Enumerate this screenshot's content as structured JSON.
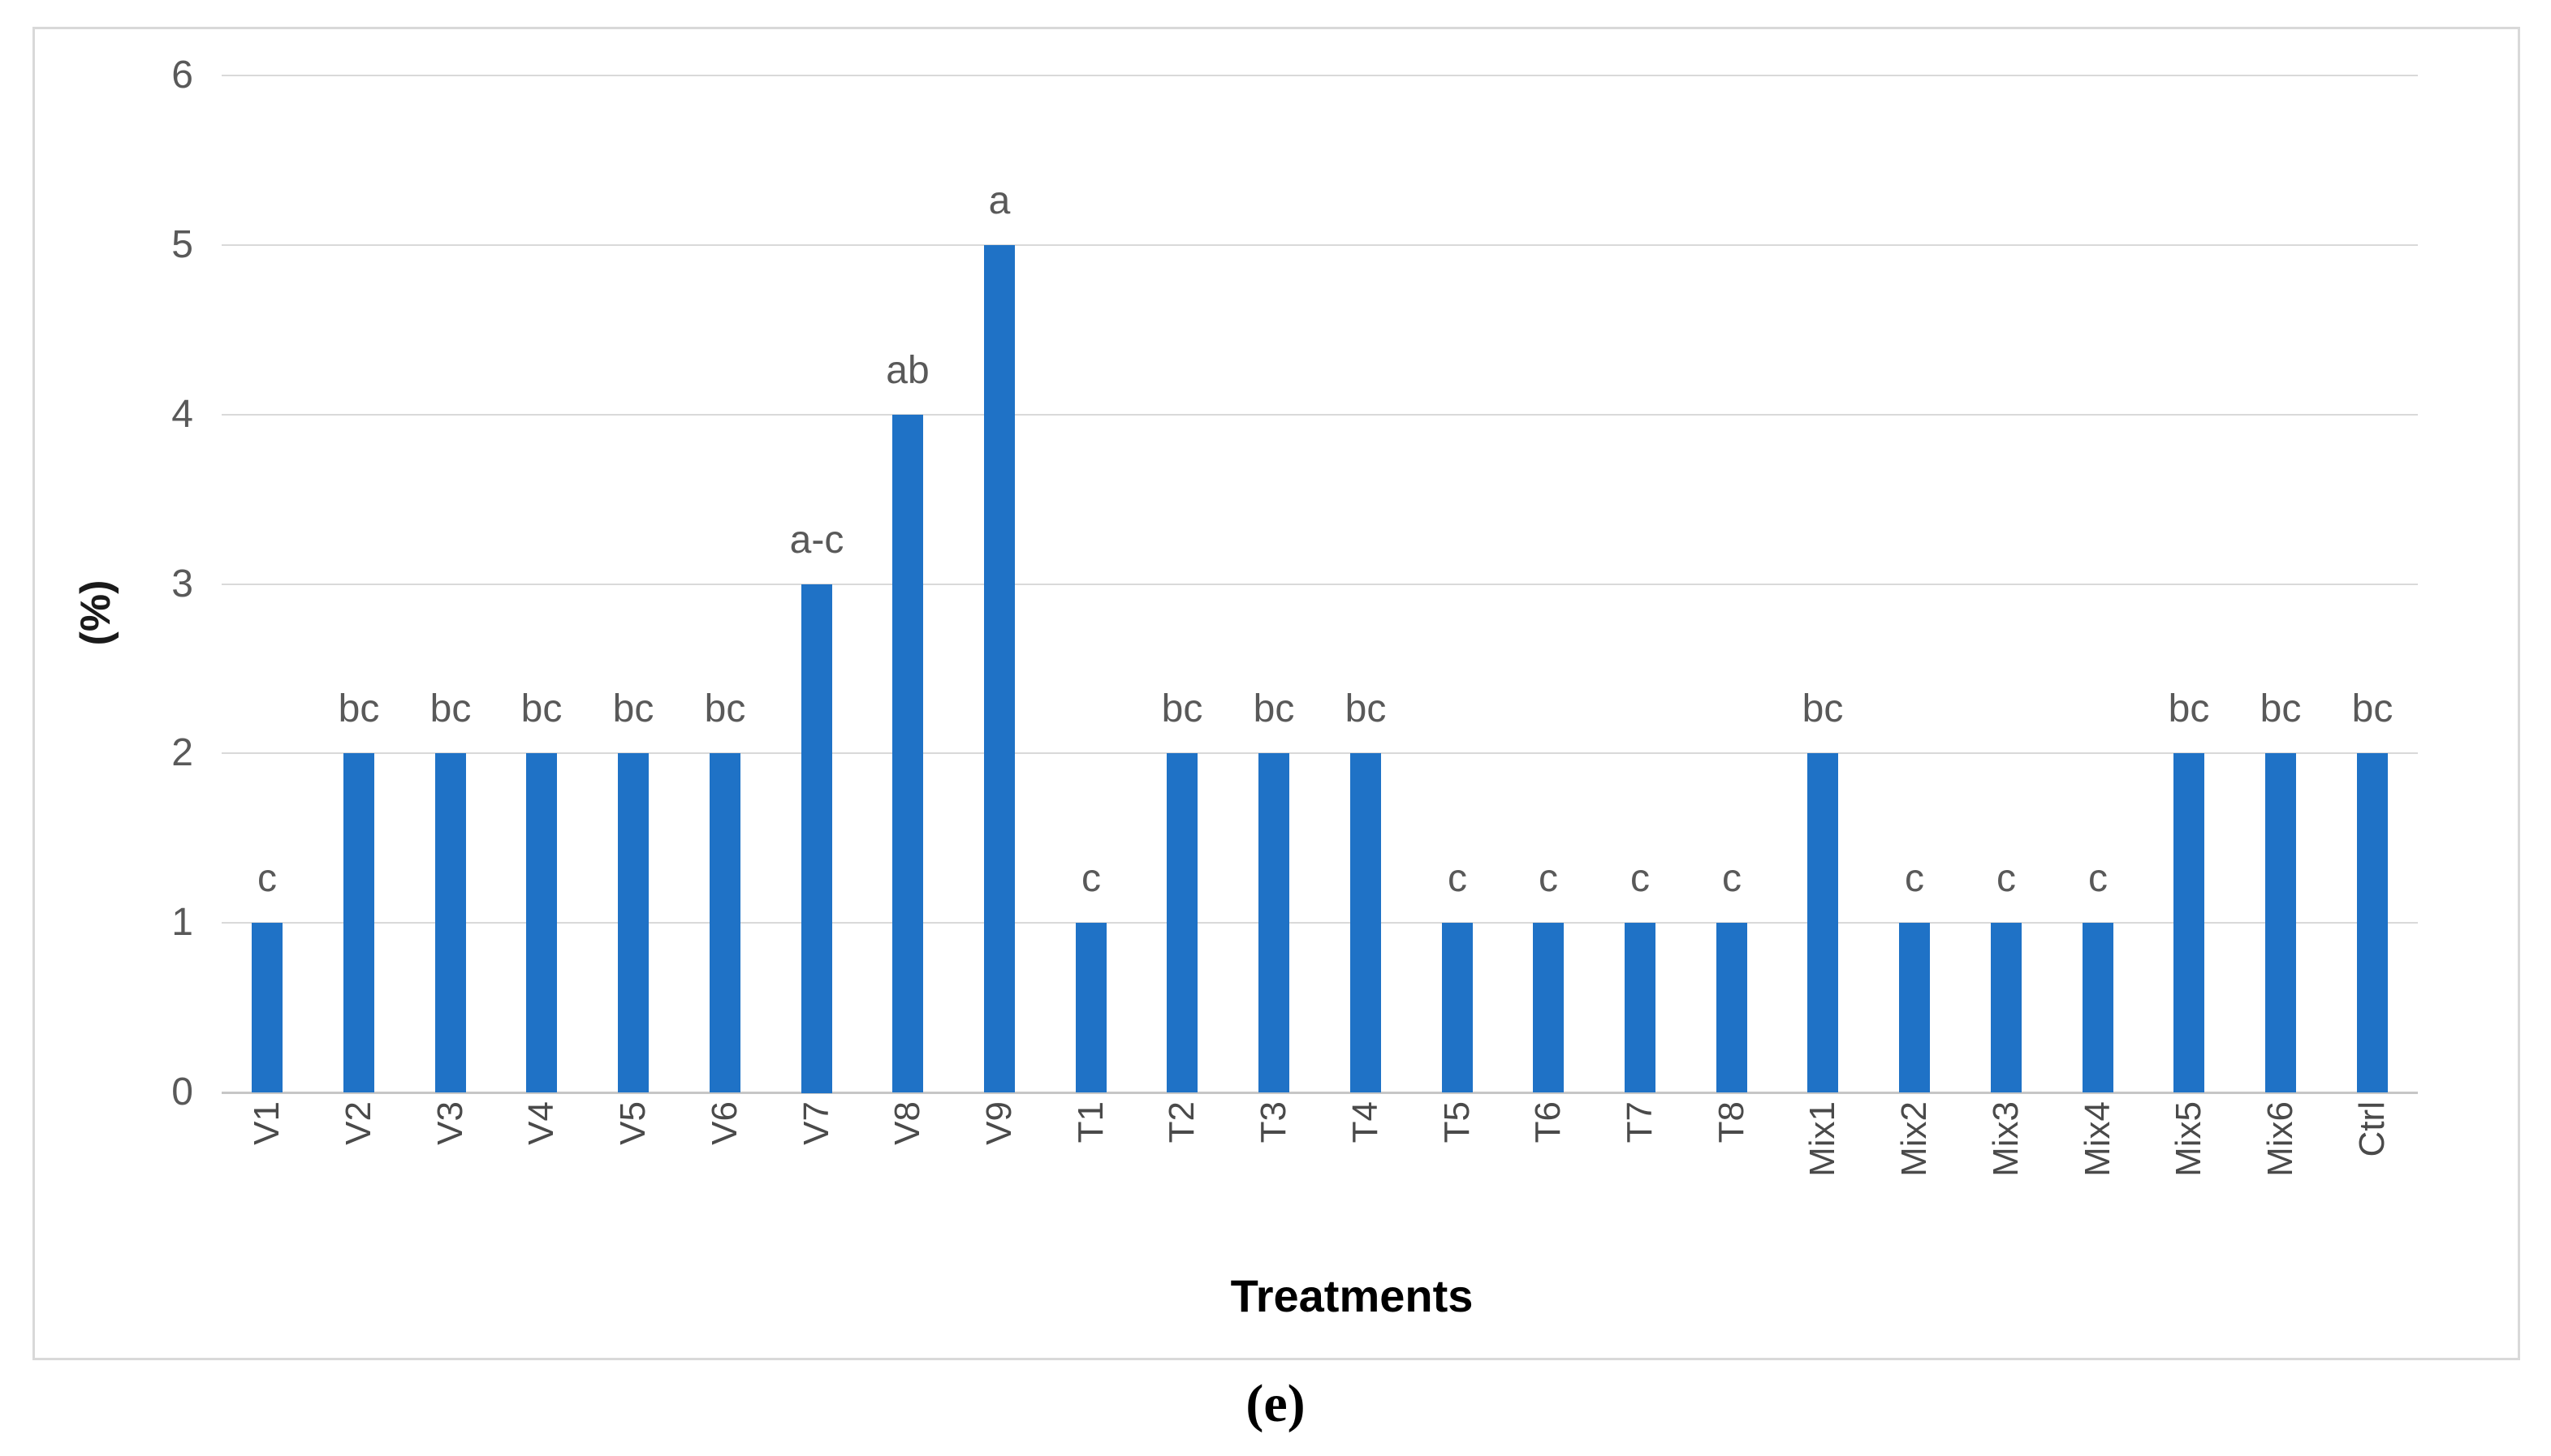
{
  "figure": {
    "caption": "(e)"
  },
  "chart_data": {
    "type": "bar",
    "title": "",
    "categories": [
      "V1",
      "V2",
      "V3",
      "V4",
      "V5",
      "V6",
      "V7",
      "V8",
      "V9",
      "T1",
      "T2",
      "T3",
      "T4",
      "T5",
      "T6",
      "T7",
      "T8",
      "Mix1",
      "Mix2",
      "Mix3",
      "Mix4",
      "Mix5",
      "Mix6",
      "Ctrl"
    ],
    "values": [
      1,
      2,
      2,
      2,
      2,
      2,
      3,
      4,
      5,
      1,
      2,
      2,
      2,
      1,
      1,
      1,
      1,
      2,
      1,
      1,
      1,
      2,
      2,
      2
    ],
    "bar_labels": [
      "c",
      "bc",
      "bc",
      "bc",
      "bc",
      "bc",
      "a-c",
      "ab",
      "a",
      "c",
      "bc",
      "bc",
      "bc",
      "c",
      "c",
      "c",
      "c",
      "bc",
      "c",
      "c",
      "c",
      "bc",
      "bc",
      "bc"
    ],
    "xlabel": "Treatments",
    "ylabel": "(%)",
    "ylim": [
      0,
      6
    ],
    "yticks": [
      0,
      1,
      2,
      3,
      4,
      5,
      6
    ],
    "grid": true,
    "legend": "none",
    "bar_color": "#1f72c6",
    "gridline_color": "#d9d9d9",
    "tick_color": "#595959"
  }
}
